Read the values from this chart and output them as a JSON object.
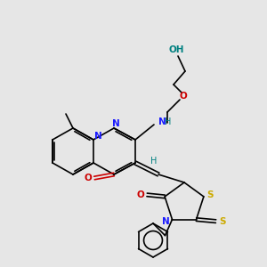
{
  "bg_color": "#e6e6e6",
  "atom_colors": {
    "C": "#000000",
    "N": "#1a1aff",
    "O": "#cc0000",
    "S": "#ccaa00",
    "H": "#008080"
  }
}
